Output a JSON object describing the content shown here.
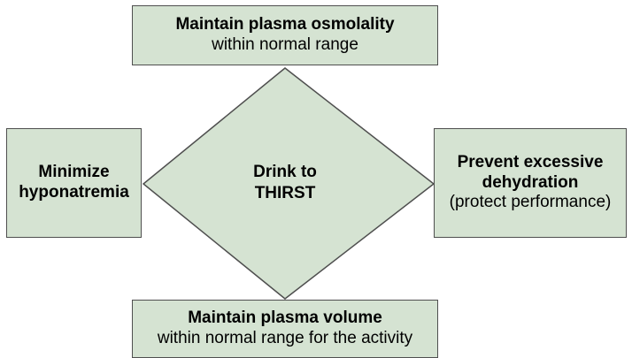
{
  "colors": {
    "box_fill": "#d5e3d2",
    "box_border": "#4f4f4f",
    "text": "#000000",
    "background": "#ffffff"
  },
  "nodes": {
    "top": {
      "bold": "Maintain plasma osmolality",
      "normal": "within normal range"
    },
    "left": {
      "line1": "Minimize",
      "line2": "hyponatremia"
    },
    "right": {
      "bold1": "Prevent excessive",
      "bold2": "dehydration",
      "normal": "(protect performance)"
    },
    "bottom": {
      "bold": "Maintain plasma volume",
      "normal": "within normal range for the activity"
    },
    "center": {
      "line1": "Drink to",
      "line2": "THIRST"
    }
  }
}
